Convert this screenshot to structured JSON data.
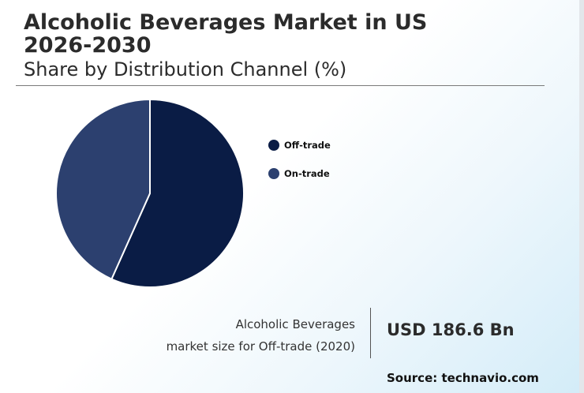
{
  "header": {
    "title_line1": "Alcoholic Beverages Market in US",
    "title_line2": "2026-2030",
    "subtitle": "Share by Distribution Channel (%)"
  },
  "chart_data": {
    "type": "pie",
    "title": "Share by Distribution Channel (%)",
    "categories": [
      "Off-trade",
      "On-trade"
    ],
    "values": [
      56.7,
      43.3
    ],
    "colors": [
      "#0a1c45",
      "#2c406f"
    ],
    "legend_position": "right",
    "start_angle_deg": 0,
    "direction": "clockwise"
  },
  "stat": {
    "label_line1": "Alcoholic Beverages",
    "label_line2": "market size for Off-trade (2020)",
    "value": "USD 186.6 Bn"
  },
  "source": "Source: technavio.com"
}
